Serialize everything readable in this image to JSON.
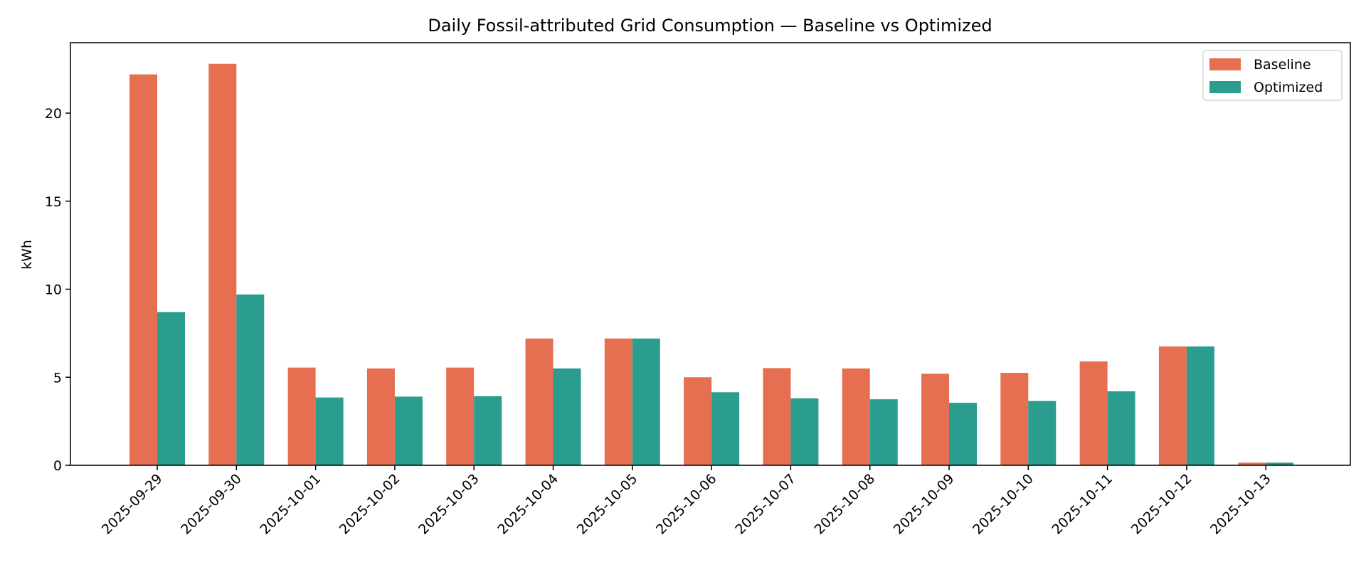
{
  "chart_data": {
    "type": "bar",
    "title": "Daily Fossil-attributed Grid Consumption — Baseline vs Optimized",
    "xlabel": "",
    "ylabel": "kWh",
    "categories": [
      "2025-09-29",
      "2025-09-30",
      "2025-10-01",
      "2025-10-02",
      "2025-10-03",
      "2025-10-04",
      "2025-10-05",
      "2025-10-06",
      "2025-10-07",
      "2025-10-08",
      "2025-10-09",
      "2025-10-10",
      "2025-10-11",
      "2025-10-12",
      "2025-10-13"
    ],
    "series": [
      {
        "name": "Baseline",
        "color": "#e76f51",
        "values": [
          22.2,
          22.8,
          5.55,
          5.5,
          5.55,
          7.2,
          7.2,
          5.0,
          5.52,
          5.5,
          5.2,
          5.25,
          5.9,
          6.75,
          0.15
        ]
      },
      {
        "name": "Optimized",
        "color": "#2a9d8f",
        "values": [
          8.7,
          9.7,
          3.85,
          3.9,
          3.92,
          5.5,
          7.2,
          4.15,
          3.8,
          3.75,
          3.55,
          3.65,
          4.2,
          6.75,
          0.15
        ]
      }
    ],
    "ylim": [
      0,
      24
    ],
    "yticks": [
      0,
      5,
      10,
      15,
      20
    ],
    "grid": false,
    "legend": "top-right"
  }
}
